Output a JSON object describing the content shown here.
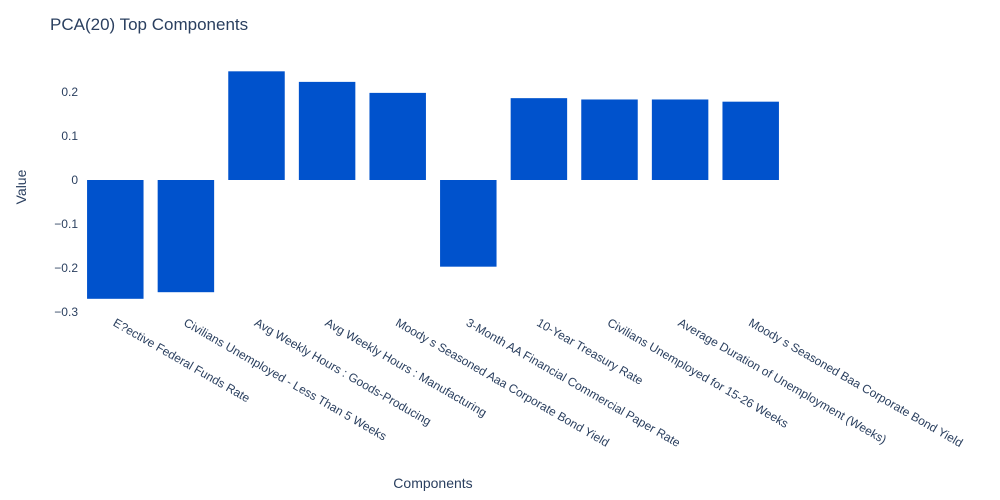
{
  "chart_data": {
    "type": "bar",
    "title": "PCA(20) Top Components",
    "xlabel": "Components",
    "ylabel": "Value",
    "ylim": [
      -0.3,
      0.3
    ],
    "yticks": [
      {
        "value": 0.2,
        "label": "0.2"
      },
      {
        "value": 0.1,
        "label": "0.1"
      },
      {
        "value": 0,
        "label": "0"
      },
      {
        "value": -0.1,
        "label": "−0.1"
      },
      {
        "value": -0.2,
        "label": "−0.2"
      },
      {
        "value": -0.3,
        "label": "−0.3"
      }
    ],
    "grid": false,
    "bar_color": "#0052cc",
    "categories": [
      "E?ective Federal Funds Rate",
      "Civilians Unemployed - Less Than 5 Weeks",
      "Avg Weekly Hours : Goods-Producing",
      "Avg Weekly Hours : Manufacturing",
      "Moody s Seasoned Aaa Corporate Bond Yield",
      "3-Month AA Financial Commercial Paper Rate",
      "10-Year Treasury Rate",
      "Civilians Unemployed for 15-26 Weeks",
      "Average Duration of Unemployment (Weeks)",
      "Moody s Seasoned Baa Corporate Bond Yield"
    ],
    "values": [
      -0.27,
      -0.255,
      0.247,
      0.223,
      0.198,
      -0.197,
      0.186,
      0.183,
      0.183,
      0.178
    ]
  }
}
